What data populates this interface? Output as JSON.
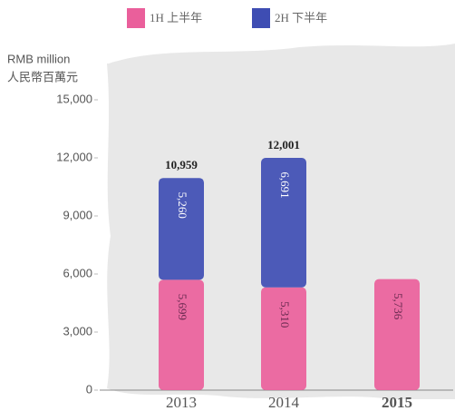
{
  "chart_data": {
    "type": "stacked_bar",
    "y_label": [
      "RMB million",
      "人民幣百萬元"
    ],
    "categories": [
      "2013",
      "2014",
      "2015"
    ],
    "highlight_index": 2,
    "highlight_color": "#3b4cb0",
    "series": [
      {
        "name": "1H 上半年",
        "color": "#ea5f9b",
        "values": [
          5699,
          5310,
          5736
        ],
        "value_labels": [
          "5,699",
          "5,310",
          "5,736"
        ]
      },
      {
        "name": "2H 下半年",
        "color": "#3e4db3",
        "values": [
          5260,
          6691,
          null
        ],
        "value_labels": [
          "5,260",
          "6,691",
          null
        ]
      }
    ],
    "totals": {
      "values": [
        10959,
        12001,
        null
      ],
      "value_labels": [
        "10,959",
        "12,001",
        null
      ]
    },
    "ylim": [
      0,
      15000
    ],
    "yticks": [
      {
        "value": 0,
        "label": "0"
      },
      {
        "value": 3000,
        "label": "3,000"
      },
      {
        "value": 6000,
        "label": "6,000"
      },
      {
        "value": 9000,
        "label": "9,000"
      },
      {
        "value": 12000,
        "label": "12,000"
      },
      {
        "value": 15000,
        "label": "15,000"
      }
    ]
  }
}
